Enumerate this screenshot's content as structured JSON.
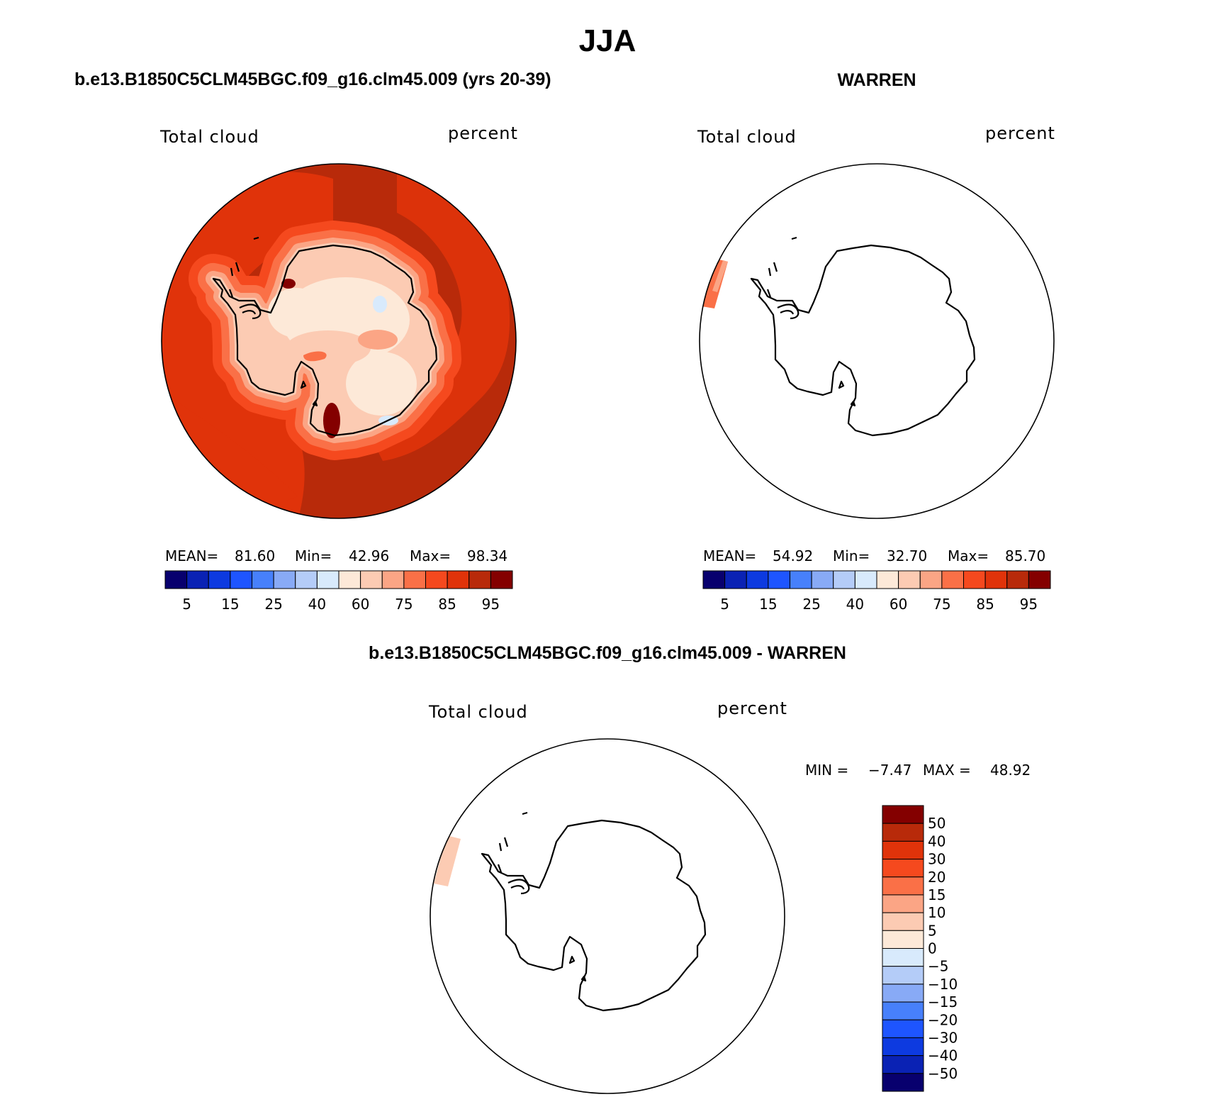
{
  "title": "JJA",
  "palette_main": [
    "#08006e",
    "#0a22b4",
    "#0d3ae0",
    "#1e55ff",
    "#4780fb",
    "#88aaf6",
    "#b4ccf8",
    "#d8eafc",
    "#fde9d8",
    "#fccbb3",
    "#fba585",
    "#fa7047",
    "#f5491e",
    "#e0330a",
    "#b82a0a",
    "#840000"
  ],
  "colors": {
    "coast": "#000000",
    "rim": "#000000"
  },
  "panels": [
    {
      "id": "model",
      "header": "b.e13.B1850C5CLM45BGC.f09_g16.clm45.009 (yrs 20-39)",
      "left_label": "Total cloud",
      "right_label": "percent",
      "stats": {
        "mean_label": "MEAN=",
        "mean": "81.60",
        "min_label": "Min=",
        "min": "42.96",
        "max_label": "Max=",
        "max": "98.34"
      },
      "colorbar_ticks": [
        "5",
        "15",
        "25",
        "40",
        "60",
        "75",
        "85",
        "95"
      ]
    },
    {
      "id": "obs",
      "header": "WARREN",
      "left_label": "Total cloud",
      "right_label": "percent",
      "stats": {
        "mean_label": "MEAN=",
        "mean": "54.92",
        "min_label": "Min=",
        "min": "32.70",
        "max_label": "Max=",
        "max": "85.70"
      },
      "colorbar_ticks": [
        "5",
        "15",
        "25",
        "40",
        "60",
        "75",
        "85",
        "95"
      ]
    },
    {
      "id": "diff",
      "header": "b.e13.B1850C5CLM45BGC.f09_g16.clm45.009 - WARREN",
      "left_label": "Total cloud",
      "right_label": "percent",
      "stats": {
        "min_label": "MIN =",
        "min": "−7.47",
        "max_label": "MAX =",
        "max": "48.92"
      },
      "colorbar_ticks": [
        "50",
        "40",
        "30",
        "20",
        "15",
        "10",
        "5",
        "0",
        "−5",
        "−10",
        "−15",
        "−20",
        "−30",
        "−40",
        "−50"
      ],
      "palette": [
        "#840000",
        "#b82a0a",
        "#e0330a",
        "#f5491e",
        "#fa7047",
        "#fba585",
        "#fccbb3",
        "#fde9d8",
        "#d8eafc",
        "#b4ccf8",
        "#88aaf6",
        "#4780fb",
        "#1e55ff",
        "#0d3ae0",
        "#0a22b4",
        "#08006e"
      ]
    }
  ]
}
